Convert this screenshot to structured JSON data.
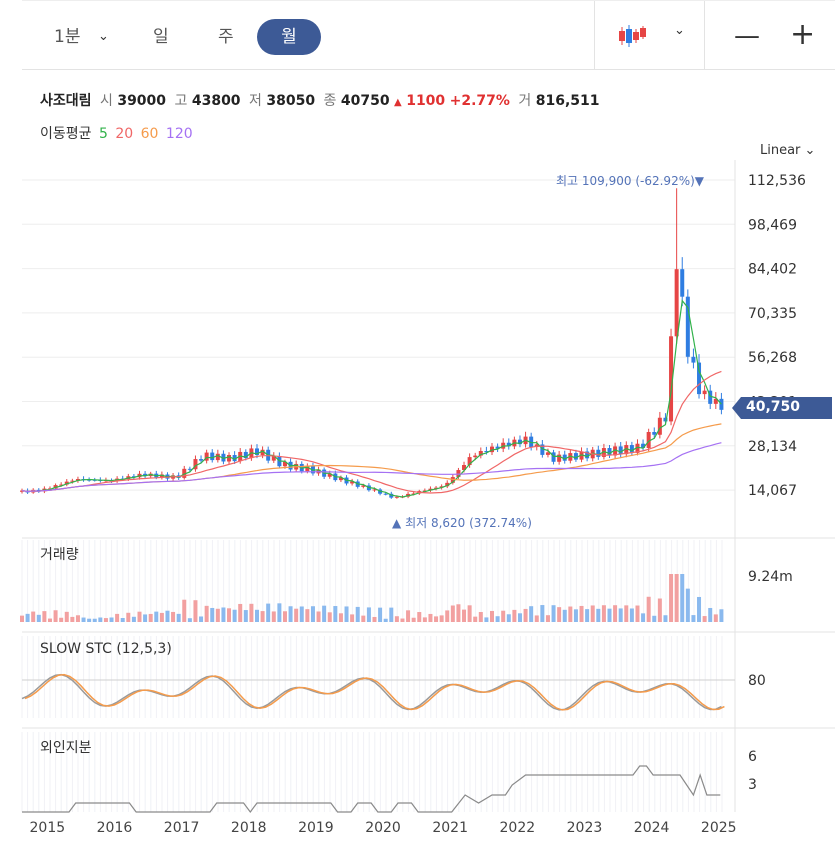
{
  "toolbar": {
    "timeframes": [
      "1분",
      "일",
      "주",
      "월"
    ],
    "active": "월"
  },
  "stock": {
    "name": "사조대림",
    "open_label": "시",
    "open": "39000",
    "high_label": "고",
    "high": "43800",
    "low_label": "저",
    "low": "38050",
    "close_label": "종",
    "close": "40750",
    "change": "1100",
    "change_pct": "+2.77%",
    "volume_label": "거",
    "volume": "816,511"
  },
  "ma_legend": {
    "label": "이동평균",
    "items": [
      {
        "name": "5",
        "color": "#31b24a"
      },
      {
        "name": "20",
        "color": "#f06767"
      },
      {
        "name": "60",
        "color": "#f59b4b"
      },
      {
        "name": "120",
        "color": "#a571f3"
      }
    ]
  },
  "scale_label": "Linear",
  "annotations": {
    "max": "최고 109,900 (-62.92%)",
    "min": "최저 8,620 (372.74%)",
    "last_price": "40,750"
  },
  "colors": {
    "up": "#e64545",
    "down": "#2f7de1",
    "badge": "#3d5a96"
  },
  "chart_data": [
    {
      "type": "candlestick",
      "ylim": [
        6000,
        118000
      ],
      "y_ticks": [
        "112,536",
        "98,469",
        "84,402",
        "70,335",
        "56,268",
        "42,201",
        "28,134",
        "14,067"
      ],
      "x_ticks": [
        "2015",
        "2016",
        "2017",
        "2018",
        "2019",
        "2020",
        "2021",
        "2022",
        "2023",
        "2024",
        "2025"
      ],
      "x_range": [
        2014.7,
        2025.2
      ],
      "series": []
    },
    {
      "type": "bar",
      "title": "거래량",
      "y_ticks": [
        "9.24m"
      ]
    },
    {
      "type": "line",
      "title": "SLOW STC (12,5,3)",
      "y_ticks": [
        "80"
      ]
    },
    {
      "type": "line",
      "title": "외인지분",
      "y_ticks": [
        "6",
        "3"
      ]
    }
  ]
}
